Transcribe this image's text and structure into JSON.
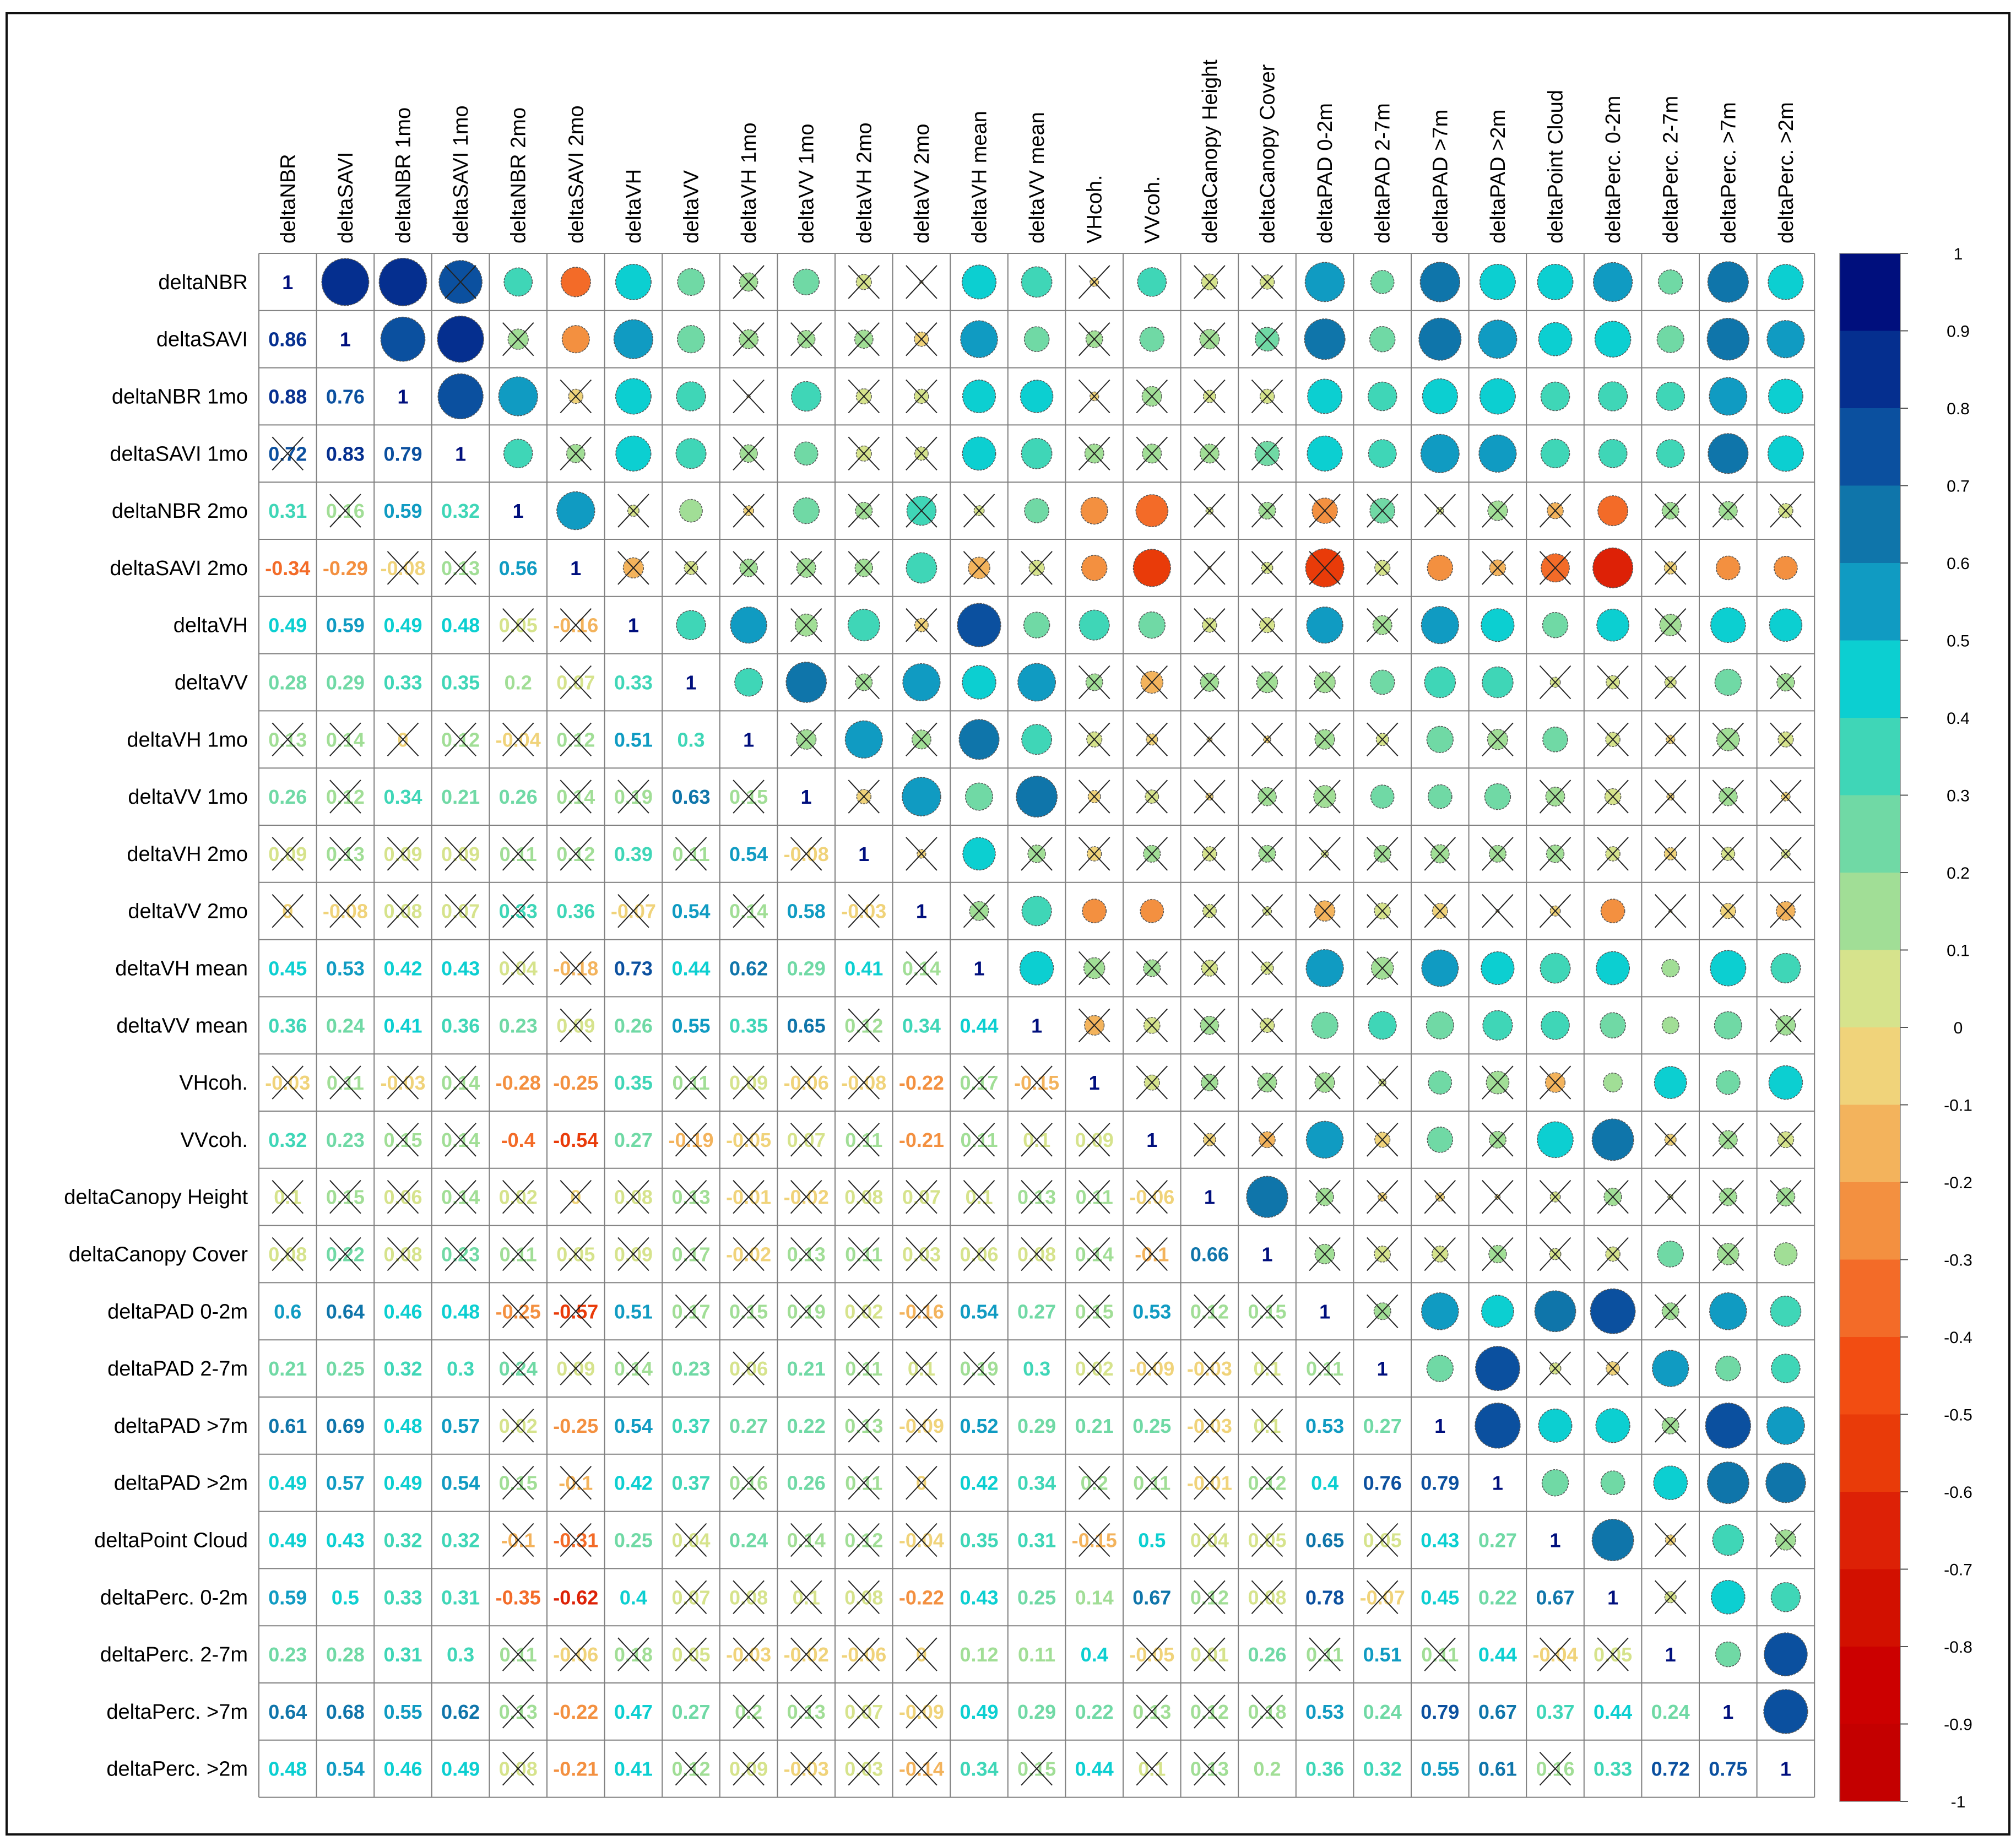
{
  "chart_data": {
    "type": "heatmap",
    "style": "correlogram mixed: numeric coefficients in lower triangle, circles in upper triangle, non-significant cells crossed",
    "variables": [
      "deltaNBR",
      "deltaSAVI",
      "deltaNBR 1mo",
      "deltaSAVI 1mo",
      "deltaNBR 2mo",
      "deltaSAVI 2mo",
      "deltaVH",
      "deltaVV",
      "deltaVH 1mo",
      "deltaVV 1mo",
      "deltaVH 2mo",
      "deltaVV 2mo",
      "deltaVH mean",
      "deltaVV mean",
      "VHcoh.",
      "VVcoh.",
      "deltaCanopy Height",
      "deltaCanopy Cover",
      "deltaPAD 0-2m",
      "deltaPAD 2-7m",
      "deltaPAD >7m",
      "deltaPAD >2m",
      "deltaPoint Cloud",
      "deltaPerc. 0-2m",
      "deltaPerc. 2-7m",
      "deltaPerc. >7m",
      "deltaPerc. >2m"
    ],
    "diagonal_label": "1",
    "lower_values": [
      [],
      [
        0.86
      ],
      [
        0.88,
        0.76
      ],
      [
        0.72,
        0.83,
        0.79
      ],
      [
        0.31,
        0.16,
        0.59,
        0.32
      ],
      [
        -0.34,
        -0.29,
        -0.08,
        0.13,
        0.56
      ],
      [
        0.49,
        0.59,
        0.49,
        0.48,
        0.05,
        -0.16
      ],
      [
        0.28,
        0.29,
        0.33,
        0.35,
        0.2,
        0.07,
        0.33
      ],
      [
        0.13,
        0.14,
        0,
        0.12,
        -0.04,
        0.12,
        0.51,
        0.3
      ],
      [
        0.26,
        0.12,
        0.34,
        0.21,
        0.26,
        0.14,
        0.19,
        0.63,
        0.15
      ],
      [
        0.09,
        0.13,
        0.09,
        0.09,
        0.11,
        0.12,
        0.39,
        0.11,
        0.54,
        -0.08
      ],
      [
        0,
        -0.08,
        0.08,
        0.07,
        0.33,
        0.36,
        -0.07,
        0.54,
        0.14,
        0.58,
        -0.03
      ],
      [
        0.45,
        0.53,
        0.42,
        0.43,
        0.04,
        -0.18,
        0.73,
        0.44,
        0.62,
        0.29,
        0.41,
        0.14
      ],
      [
        0.36,
        0.24,
        0.41,
        0.36,
        0.23,
        0.09,
        0.26,
        0.55,
        0.35,
        0.65,
        0.12,
        0.34,
        0.44
      ],
      [
        -0.03,
        0.11,
        -0.03,
        0.14,
        -0.28,
        -0.25,
        0.35,
        0.11,
        0.09,
        -0.06,
        -0.08,
        -0.22,
        0.17,
        -0.15
      ],
      [
        0.32,
        0.23,
        0.15,
        0.14,
        -0.4,
        -0.54,
        0.27,
        -0.19,
        -0.05,
        0.07,
        0.11,
        -0.21,
        0.11,
        0.1,
        0.09
      ],
      [
        0.1,
        0.15,
        0.06,
        0.14,
        0.02,
        0,
        0.08,
        0.13,
        -0.01,
        -0.02,
        0.08,
        0.07,
        0.1,
        0.13,
        0.11,
        -0.06
      ],
      [
        0.08,
        0.22,
        0.08,
        0.23,
        0.11,
        0.05,
        0.09,
        0.17,
        -0.02,
        0.13,
        0.11,
        0.03,
        0.06,
        0.08,
        0.14,
        -0.1,
        0.66
      ],
      [
        0.6,
        0.64,
        0.46,
        0.48,
        -0.25,
        -0.57,
        0.51,
        0.17,
        0.15,
        0.19,
        0.02,
        -0.16,
        0.54,
        0.27,
        0.15,
        0.53,
        0.12,
        0.15
      ],
      [
        0.21,
        0.25,
        0.32,
        0.3,
        0.24,
        0.09,
        0.14,
        0.23,
        0.06,
        0.21,
        0.11,
        0.1,
        0.19,
        0.3,
        0.02,
        -0.09,
        -0.03,
        0.1,
        0.11
      ],
      [
        0.61,
        0.69,
        0.48,
        0.57,
        0.02,
        -0.25,
        0.54,
        0.37,
        0.27,
        0.22,
        0.13,
        -0.09,
        0.52,
        0.29,
        0.21,
        0.25,
        -0.03,
        0.1,
        0.53,
        0.27
      ],
      [
        0.49,
        0.57,
        0.49,
        0.54,
        0.15,
        -0.1,
        0.42,
        0.37,
        0.16,
        0.26,
        0.11,
        0,
        0.42,
        0.34,
        0.2,
        0.11,
        -0.01,
        0.12,
        0.4,
        0.76,
        0.79
      ],
      [
        0.49,
        0.43,
        0.32,
        0.32,
        -0.1,
        -0.31,
        0.25,
        0.04,
        0.24,
        0.14,
        0.12,
        -0.04,
        0.35,
        0.31,
        -0.15,
        0.5,
        0.04,
        0.05,
        0.65,
        0.05,
        0.43,
        0.27
      ],
      [
        0.59,
        0.5,
        0.33,
        0.31,
        -0.35,
        -0.62,
        0.4,
        0.07,
        0.08,
        0.1,
        0.08,
        -0.22,
        0.43,
        0.25,
        0.14,
        0.67,
        0.12,
        0.08,
        0.78,
        -0.07,
        0.45,
        0.22,
        0.67
      ],
      [
        0.23,
        0.28,
        0.31,
        0.3,
        0.11,
        -0.06,
        0.18,
        0.05,
        -0.03,
        -0.02,
        -0.06,
        0,
        0.12,
        0.11,
        0.4,
        -0.05,
        0.01,
        0.26,
        0.11,
        0.51,
        0.11,
        0.44,
        -0.04,
        0.05
      ],
      [
        0.64,
        0.68,
        0.55,
        0.62,
        0.13,
        -0.22,
        0.47,
        0.27,
        0.2,
        0.13,
        0.07,
        -0.09,
        0.49,
        0.29,
        0.22,
        0.13,
        0.12,
        0.18,
        0.53,
        0.24,
        0.79,
        0.67,
        0.37,
        0.44,
        0.24
      ],
      [
        0.48,
        0.54,
        0.46,
        0.49,
        0.08,
        -0.21,
        0.41,
        0.12,
        0.09,
        -0.03,
        0.03,
        -0.14,
        0.34,
        0.15,
        0.44,
        0.1,
        0.13,
        0.2,
        0.36,
        0.32,
        0.55,
        0.61,
        0.16,
        0.33,
        0.72,
        0.75
      ]
    ],
    "non_significant_cells": [
      [
        3,
        0
      ],
      [
        8,
        0
      ],
      [
        8,
        1
      ],
      [
        11,
        0
      ],
      [
        11,
        4
      ],
      [
        16,
        0
      ],
      [
        16,
        1
      ],
      [
        17,
        0
      ],
      [
        17,
        2
      ],
      [
        22,
        4
      ],
      [
        4,
        1
      ],
      [
        5,
        2
      ],
      [
        5,
        3
      ],
      [
        6,
        4
      ],
      [
        6,
        5
      ],
      [
        7,
        5
      ],
      [
        8,
        2
      ],
      [
        8,
        3
      ],
      [
        8,
        4
      ],
      [
        8,
        5
      ],
      [
        9,
        1
      ],
      [
        9,
        5
      ],
      [
        9,
        6
      ],
      [
        9,
        8
      ],
      [
        10,
        0
      ],
      [
        10,
        1
      ],
      [
        10,
        2
      ],
      [
        10,
        3
      ],
      [
        10,
        4
      ],
      [
        10,
        5
      ],
      [
        10,
        7
      ],
      [
        10,
        9
      ],
      [
        11,
        1
      ],
      [
        11,
        2
      ],
      [
        11,
        3
      ],
      [
        11,
        6
      ],
      [
        11,
        8
      ],
      [
        11,
        10
      ],
      [
        12,
        4
      ],
      [
        12,
        5
      ],
      [
        12,
        11
      ],
      [
        13,
        5
      ],
      [
        13,
        10
      ],
      [
        14,
        0
      ],
      [
        14,
        1
      ],
      [
        14,
        2
      ],
      [
        14,
        3
      ],
      [
        14,
        7
      ],
      [
        14,
        8
      ],
      [
        14,
        9
      ],
      [
        14,
        10
      ],
      [
        14,
        12
      ],
      [
        14,
        13
      ],
      [
        15,
        2
      ],
      [
        15,
        3
      ],
      [
        15,
        7
      ],
      [
        15,
        8
      ],
      [
        15,
        9
      ],
      [
        15,
        10
      ],
      [
        15,
        12
      ],
      [
        15,
        13
      ],
      [
        15,
        14
      ],
      [
        16,
        2
      ],
      [
        16,
        3
      ],
      [
        16,
        4
      ],
      [
        16,
        5
      ],
      [
        16,
        6
      ],
      [
        16,
        7
      ],
      [
        16,
        8
      ],
      [
        16,
        9
      ],
      [
        16,
        10
      ],
      [
        16,
        11
      ],
      [
        16,
        12
      ],
      [
        16,
        13
      ],
      [
        16,
        14
      ],
      [
        16,
        15
      ],
      [
        17,
        1
      ],
      [
        17,
        3
      ],
      [
        17,
        4
      ],
      [
        17,
        5
      ],
      [
        17,
        6
      ],
      [
        17,
        7
      ],
      [
        17,
        8
      ],
      [
        17,
        9
      ],
      [
        17,
        10
      ],
      [
        17,
        11
      ],
      [
        17,
        12
      ],
      [
        17,
        13
      ],
      [
        17,
        14
      ],
      [
        17,
        15
      ],
      [
        18,
        4
      ],
      [
        18,
        5
      ],
      [
        18,
        7
      ],
      [
        18,
        8
      ],
      [
        18,
        9
      ],
      [
        18,
        10
      ],
      [
        18,
        11
      ],
      [
        18,
        14
      ],
      [
        18,
        16
      ],
      [
        18,
        17
      ],
      [
        19,
        4
      ],
      [
        19,
        5
      ],
      [
        19,
        6
      ],
      [
        19,
        8
      ],
      [
        19,
        10
      ],
      [
        19,
        11
      ],
      [
        19,
        12
      ],
      [
        19,
        14
      ],
      [
        19,
        15
      ],
      [
        19,
        16
      ],
      [
        19,
        17
      ],
      [
        19,
        18
      ],
      [
        20,
        4
      ],
      [
        20,
        10
      ],
      [
        20,
        11
      ],
      [
        20,
        16
      ],
      [
        20,
        17
      ],
      [
        21,
        4
      ],
      [
        21,
        5
      ],
      [
        21,
        8
      ],
      [
        21,
        10
      ],
      [
        21,
        11
      ],
      [
        21,
        14
      ],
      [
        21,
        15
      ],
      [
        21,
        16
      ],
      [
        21,
        17
      ],
      [
        22,
        5
      ],
      [
        22,
        7
      ],
      [
        22,
        9
      ],
      [
        22,
        10
      ],
      [
        22,
        11
      ],
      [
        22,
        14
      ],
      [
        22,
        16
      ],
      [
        22,
        17
      ],
      [
        22,
        19
      ],
      [
        23,
        7
      ],
      [
        23,
        8
      ],
      [
        23,
        9
      ],
      [
        23,
        10
      ],
      [
        23,
        16
      ],
      [
        23,
        17
      ],
      [
        23,
        19
      ],
      [
        24,
        4
      ],
      [
        24,
        5
      ],
      [
        24,
        6
      ],
      [
        24,
        7
      ],
      [
        24,
        8
      ],
      [
        24,
        9
      ],
      [
        24,
        10
      ],
      [
        24,
        11
      ],
      [
        24,
        15
      ],
      [
        24,
        16
      ],
      [
        24,
        18
      ],
      [
        24,
        20
      ],
      [
        24,
        22
      ],
      [
        24,
        23
      ],
      [
        25,
        4
      ],
      [
        25,
        8
      ],
      [
        25,
        9
      ],
      [
        25,
        10
      ],
      [
        25,
        11
      ],
      [
        25,
        15
      ],
      [
        25,
        16
      ],
      [
        25,
        17
      ],
      [
        26,
        4
      ],
      [
        26,
        7
      ],
      [
        26,
        8
      ],
      [
        26,
        9
      ],
      [
        26,
        10
      ],
      [
        26,
        11
      ],
      [
        26,
        13
      ],
      [
        26,
        15
      ],
      [
        26,
        16
      ],
      [
        26,
        22
      ]
    ],
    "colorbar": {
      "min": -1,
      "max": 1,
      "ticks": [
        "1",
        "0.9",
        "0.8",
        "0.7",
        "0.6",
        "0.5",
        "0.4",
        "0.3",
        "0.2",
        "0.1",
        "0",
        "-0.1",
        "-0.2",
        "-0.3",
        "-0.4",
        "-0.5",
        "-0.6",
        "-0.7",
        "-0.8",
        "-0.9",
        "-1"
      ]
    },
    "palette_from_high_to_low": [
      "#000f7d",
      "#052f8f",
      "#0b509f",
      "#0f75aa",
      "#109bc2",
      "#0ccfd1",
      "#3fd6b7",
      "#70d9a5",
      "#a1de96",
      "#d6e38c",
      "#f0d37a",
      "#f3b35c",
      "#f39040",
      "#f36b28",
      "#f24d12",
      "#e93b09",
      "#dd2106",
      "#d21000",
      "#cc0000",
      "#c40000"
    ]
  }
}
